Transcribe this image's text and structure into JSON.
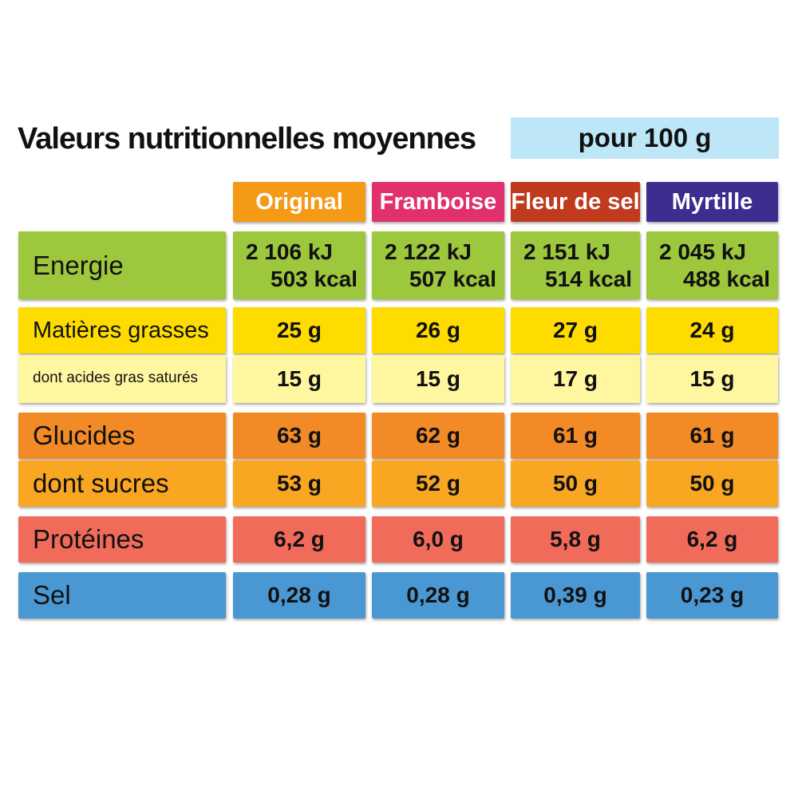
{
  "title": "Valeurs nutritionnelles moyennes",
  "per_unit": "pour 100 g",
  "columns": [
    {
      "label": "Original",
      "color": "#f49a17"
    },
    {
      "label": "Framboise",
      "color": "#e2306e"
    },
    {
      "label": "Fleur de sel",
      "color": "#c03a1e"
    },
    {
      "label": "Myrtille",
      "color": "#3e2d8f"
    }
  ],
  "rows": {
    "energie": {
      "label": "Energie",
      "color": "#9dc73d",
      "kj": [
        "2 106 kJ",
        "2 122 kJ",
        "2 151 kJ",
        "2 045 kJ"
      ],
      "kcal": [
        "503 kcal",
        "507 kcal",
        "514 kcal",
        "488 kcal"
      ]
    },
    "matieres_grasses": {
      "label": "Matières grasses",
      "color": "#fedc00",
      "values": [
        "25 g",
        "26 g",
        "27 g",
        "24 g"
      ]
    },
    "acides_gras_satures": {
      "label": "dont acides gras saturés",
      "color": "#fff7a0",
      "values": [
        "15 g",
        "15 g",
        "17 g",
        "15 g"
      ]
    },
    "glucides": {
      "label": "Glucides",
      "color": "#f28a26",
      "values": [
        "63 g",
        "62 g",
        "61 g",
        "61 g"
      ]
    },
    "sucres": {
      "label": "dont sucres",
      "color": "#f9a623",
      "values": [
        "53 g",
        "52 g",
        "50 g",
        "50 g"
      ]
    },
    "proteines": {
      "label": "Protéines",
      "color": "#f16b5a",
      "values": [
        "6,2 g",
        "6,0 g",
        "5,8 g",
        "6,2 g"
      ]
    },
    "sel": {
      "label": "Sel",
      "color": "#4a98d3",
      "values": [
        "0,28 g",
        "0,28 g",
        "0,39 g",
        "0,23 g"
      ]
    }
  }
}
